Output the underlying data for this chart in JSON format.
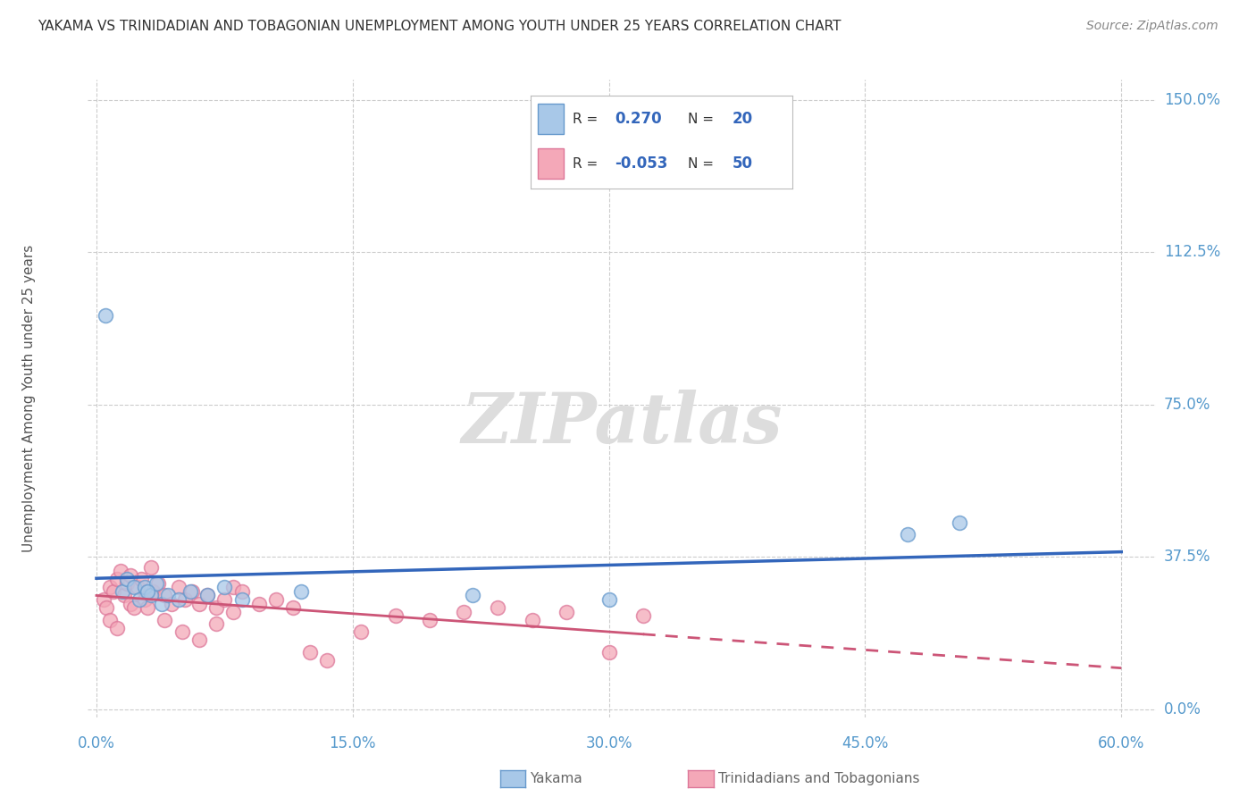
{
  "title": "YAKAMA VS TRINIDADIAN AND TOBAGONIAN UNEMPLOYMENT AMONG YOUTH UNDER 25 YEARS CORRELATION CHART",
  "source": "Source: ZipAtlas.com",
  "xlabel_ticks": [
    "0.0%",
    "15.0%",
    "30.0%",
    "45.0%",
    "60.0%"
  ],
  "xlabel_vals": [
    0.0,
    0.15,
    0.3,
    0.45,
    0.6
  ],
  "ylabel_ticks": [
    "0.0%",
    "37.5%",
    "75.0%",
    "112.5%",
    "150.0%"
  ],
  "ylabel_vals": [
    0.0,
    0.375,
    0.75,
    1.125,
    1.5
  ],
  "xlim": [
    -0.005,
    0.62
  ],
  "ylim": [
    -0.02,
    1.55
  ],
  "ylabel": "Unemployment Among Youth under 25 years",
  "yakama_color": "#A8C8E8",
  "trinidadian_color": "#F4A8B8",
  "yakama_edge_color": "#6699CC",
  "trinidadian_edge_color": "#DD7799",
  "yakama_line_color": "#3366BB",
  "trinidadian_line_color": "#CC5577",
  "watermark_color": "#DDDDDD",
  "grid_color": "#CCCCCC",
  "title_color": "#333333",
  "axis_tick_color": "#5599CC",
  "ylabel_color": "#555555",
  "source_color": "#888888",
  "legend_text_color": "#333333",
  "legend_R_N_color": "#3366BB",
  "background_color": "#FFFFFF",
  "yakama_x": [
    0.005,
    0.015,
    0.018,
    0.022,
    0.025,
    0.028,
    0.032,
    0.035,
    0.038,
    0.042,
    0.048,
    0.055,
    0.065,
    0.075,
    0.085,
    0.12,
    0.22,
    0.3,
    0.475,
    0.505,
    0.03
  ],
  "yakama_y": [
    0.97,
    0.29,
    0.32,
    0.3,
    0.27,
    0.3,
    0.28,
    0.31,
    0.26,
    0.28,
    0.27,
    0.29,
    0.28,
    0.3,
    0.27,
    0.29,
    0.28,
    0.27,
    0.43,
    0.46,
    0.29
  ],
  "trinidadian_x": [
    0.004,
    0.006,
    0.008,
    0.01,
    0.012,
    0.014,
    0.016,
    0.018,
    0.02,
    0.022,
    0.024,
    0.026,
    0.028,
    0.03,
    0.033,
    0.036,
    0.04,
    0.044,
    0.048,
    0.052,
    0.056,
    0.06,
    0.065,
    0.07,
    0.075,
    0.08,
    0.085,
    0.095,
    0.105,
    0.115,
    0.125,
    0.135,
    0.155,
    0.175,
    0.195,
    0.215,
    0.235,
    0.255,
    0.275,
    0.3,
    0.32,
    0.008,
    0.012,
    0.02,
    0.032,
    0.04,
    0.05,
    0.06,
    0.07,
    0.08
  ],
  "trinidadian_y": [
    0.27,
    0.25,
    0.3,
    0.29,
    0.32,
    0.34,
    0.28,
    0.31,
    0.26,
    0.25,
    0.3,
    0.32,
    0.27,
    0.25,
    0.29,
    0.31,
    0.28,
    0.26,
    0.3,
    0.27,
    0.29,
    0.26,
    0.28,
    0.25,
    0.27,
    0.3,
    0.29,
    0.26,
    0.27,
    0.25,
    0.14,
    0.12,
    0.19,
    0.23,
    0.22,
    0.24,
    0.25,
    0.22,
    0.24,
    0.14,
    0.23,
    0.22,
    0.2,
    0.33,
    0.35,
    0.22,
    0.19,
    0.17,
    0.21,
    0.24
  ]
}
